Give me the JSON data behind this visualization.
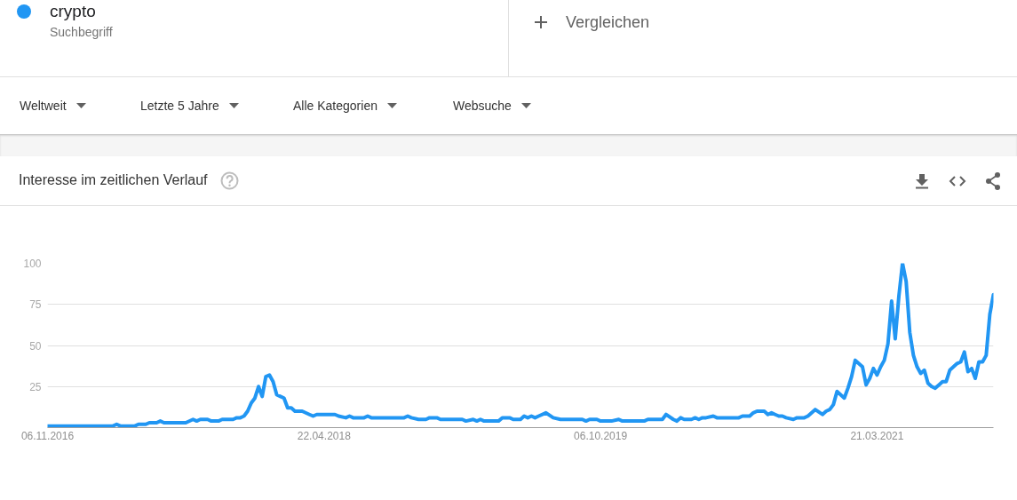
{
  "chart_data": {
    "type": "line",
    "title": "Interesse im zeitlichen Verlauf",
    "annotations": [
      "Suchbegriff",
      "Vergleichen",
      "Weltweit",
      "Letzte 5 Jahre",
      "Alle Kategorien",
      "Websuche"
    ],
    "legend": "top left",
    "grid": "y",
    "xlim": [
      "2016-11-06",
      "2021-10-31"
    ],
    "xticks": [
      {
        "value": "2016-11-06",
        "label": "06.11.2016"
      },
      {
        "value": "2018-04-22",
        "label": "22.04.2018"
      },
      {
        "value": "2019-10-06",
        "label": "06.10.2019"
      },
      {
        "value": "2021-03-21",
        "label": "21.03.2021"
      }
    ],
    "ylim": [
      0,
      100
    ],
    "yticks": [
      25,
      50,
      75,
      100
    ],
    "series": [
      {
        "name": "crypto",
        "color": "#2196f3",
        "x": [
          "2016-11-06",
          "2017-03-12",
          "2017-03-19",
          "2017-03-26",
          "2017-04-23",
          "2017-04-30",
          "2017-05-14",
          "2017-05-21",
          "2017-06-04",
          "2017-06-11",
          "2017-06-18",
          "2017-07-30",
          "2017-08-13",
          "2017-08-20",
          "2017-08-27",
          "2017-09-10",
          "2017-09-17",
          "2017-10-01",
          "2017-10-08",
          "2017-10-29",
          "2017-11-05",
          "2017-11-12",
          "2017-11-19",
          "2017-11-26",
          "2017-12-03",
          "2017-12-10",
          "2017-12-17",
          "2017-12-24",
          "2017-12-31",
          "2018-01-07",
          "2018-01-14",
          "2018-01-21",
          "2018-01-28",
          "2018-02-04",
          "2018-02-11",
          "2018-02-18",
          "2018-02-25",
          "2018-03-11",
          "2018-03-25",
          "2018-04-01",
          "2018-04-08",
          "2018-05-13",
          "2018-05-20",
          "2018-06-03",
          "2018-06-10",
          "2018-06-17",
          "2018-07-08",
          "2018-07-15",
          "2018-07-22",
          "2018-09-23",
          "2018-09-30",
          "2018-10-07",
          "2018-10-21",
          "2018-11-04",
          "2018-11-11",
          "2018-11-25",
          "2018-12-02",
          "2019-01-13",
          "2019-01-20",
          "2019-02-03",
          "2019-02-10",
          "2019-02-17",
          "2019-02-24",
          "2019-03-24",
          "2019-03-31",
          "2019-04-14",
          "2019-04-21",
          "2019-05-05",
          "2019-05-12",
          "2019-05-19",
          "2019-05-26",
          "2019-06-02",
          "2019-06-09",
          "2019-06-23",
          "2019-07-07",
          "2019-07-21",
          "2019-09-01",
          "2019-09-08",
          "2019-09-15",
          "2019-09-29",
          "2019-10-06",
          "2019-10-27",
          "2019-11-10",
          "2019-11-17",
          "2019-12-29",
          "2020-01-05",
          "2020-02-02",
          "2020-02-09",
          "2020-02-23",
          "2020-03-01",
          "2020-03-08",
          "2020-03-15",
          "2020-03-29",
          "2020-04-05",
          "2020-04-12",
          "2020-04-19",
          "2020-04-26",
          "2020-05-10",
          "2020-05-17",
          "2020-06-28",
          "2020-07-05",
          "2020-07-19",
          "2020-07-26",
          "2020-08-02",
          "2020-08-16",
          "2020-08-23",
          "2020-08-30",
          "2020-09-06",
          "2020-09-13",
          "2020-09-20",
          "2020-09-27",
          "2020-10-11",
          "2020-10-18",
          "2020-11-01",
          "2020-11-08",
          "2020-11-22",
          "2020-12-06",
          "2020-12-13",
          "2020-12-20",
          "2020-12-27",
          "2021-01-03",
          "2021-01-17",
          "2021-01-24",
          "2021-01-31",
          "2021-02-07",
          "2021-02-21",
          "2021-02-28",
          "2021-03-07",
          "2021-03-14",
          "2021-03-21",
          "2021-03-28",
          "2021-04-04",
          "2021-04-11",
          "2021-04-18",
          "2021-04-25",
          "2021-05-02",
          "2021-05-09",
          "2021-05-16",
          "2021-05-23",
          "2021-05-30",
          "2021-06-06",
          "2021-06-13",
          "2021-06-20",
          "2021-06-27",
          "2021-07-04",
          "2021-07-11",
          "2021-07-18",
          "2021-07-25",
          "2021-08-01",
          "2021-08-08",
          "2021-08-15",
          "2021-08-22",
          "2021-08-29",
          "2021-09-05",
          "2021-09-12",
          "2021-09-19",
          "2021-09-26",
          "2021-10-03",
          "2021-10-10",
          "2021-10-17",
          "2021-10-24",
          "2021-10-31"
        ],
        "values": [
          1,
          1,
          2,
          1,
          1,
          2,
          2,
          3,
          3,
          4,
          3,
          3,
          5,
          4,
          5,
          5,
          4,
          4,
          5,
          5,
          6,
          6,
          7,
          10,
          15,
          18,
          25,
          19,
          31,
          32,
          28,
          20,
          19,
          18,
          12,
          12,
          10,
          10,
          8,
          7,
          8,
          8,
          7,
          6,
          7,
          6,
          6,
          7,
          6,
          6,
          7,
          6,
          5,
          5,
          6,
          6,
          5,
          5,
          4,
          5,
          4,
          5,
          4,
          4,
          6,
          6,
          5,
          5,
          7,
          6,
          7,
          6,
          7,
          9,
          6,
          5,
          5,
          4,
          5,
          5,
          4,
          4,
          5,
          4,
          4,
          5,
          5,
          8,
          5,
          4,
          6,
          5,
          5,
          6,
          5,
          6,
          6,
          7,
          6,
          6,
          7,
          7,
          9,
          10,
          10,
          8,
          9,
          8,
          7,
          7,
          6,
          5,
          6,
          6,
          7,
          11,
          8,
          10,
          11,
          14,
          22,
          18,
          24,
          31,
          41,
          37,
          26,
          30,
          36,
          32,
          37,
          41,
          51,
          77,
          54,
          80,
          100,
          89,
          58,
          44,
          37,
          33,
          35,
          27,
          25,
          24,
          26,
          28,
          28,
          35,
          37,
          39,
          40,
          46,
          34,
          36,
          30,
          40,
          40,
          44,
          69,
          81
        ]
      }
    ]
  }
}
